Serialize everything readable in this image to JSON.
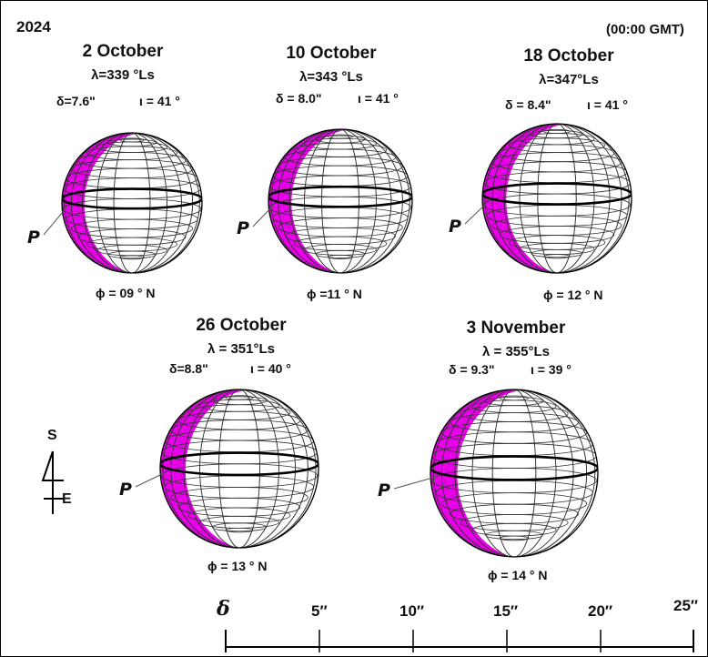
{
  "header": {
    "year": "2024",
    "time": "(00:00 GMT)"
  },
  "panels": [
    {
      "date": "2 October",
      "ls": "λ=339 °Ls",
      "diam": "δ=7.6\"",
      "phase": "ι = 41 °",
      "tilt": "ϕ = 09 ° N",
      "p": "P",
      "phase_angle": 41
    },
    {
      "date": "10 October",
      "ls": "λ=343 °Ls",
      "diam": "δ = 8.0\"",
      "phase": "ι = 41 °",
      "tilt": "ϕ =11 ° N",
      "p": "P",
      "phase_angle": 41
    },
    {
      "date": "18 October",
      "ls": "λ=347°Ls",
      "diam": "δ = 8.4\"",
      "phase": "ι = 41 °",
      "tilt": "ϕ = 12 ° N",
      "p": "P",
      "phase_angle": 41
    },
    {
      "date": "26 October",
      "ls": "λ = 351°Ls",
      "diam": "δ=8.8\"",
      "phase": "ι = 40 °",
      "tilt": "ϕ = 13 ° N",
      "p": "P",
      "phase_angle": 40
    },
    {
      "date": "3 November",
      "ls": "λ = 355°Ls",
      "diam": "δ = 9.3\"",
      "phase": "ι = 39 °",
      "tilt": "ϕ = 14 ° N",
      "p": "P",
      "phase_angle": 39
    }
  ],
  "orientation": {
    "south": "S",
    "east": "E"
  },
  "scale": {
    "symbol": "δ",
    "ticks": [
      "5″",
      "10″",
      "15″",
      "20″",
      "25″"
    ]
  },
  "colors": {
    "terminator_shade": "#e800e8",
    "grid": "#333333",
    "equator": "#000000"
  }
}
